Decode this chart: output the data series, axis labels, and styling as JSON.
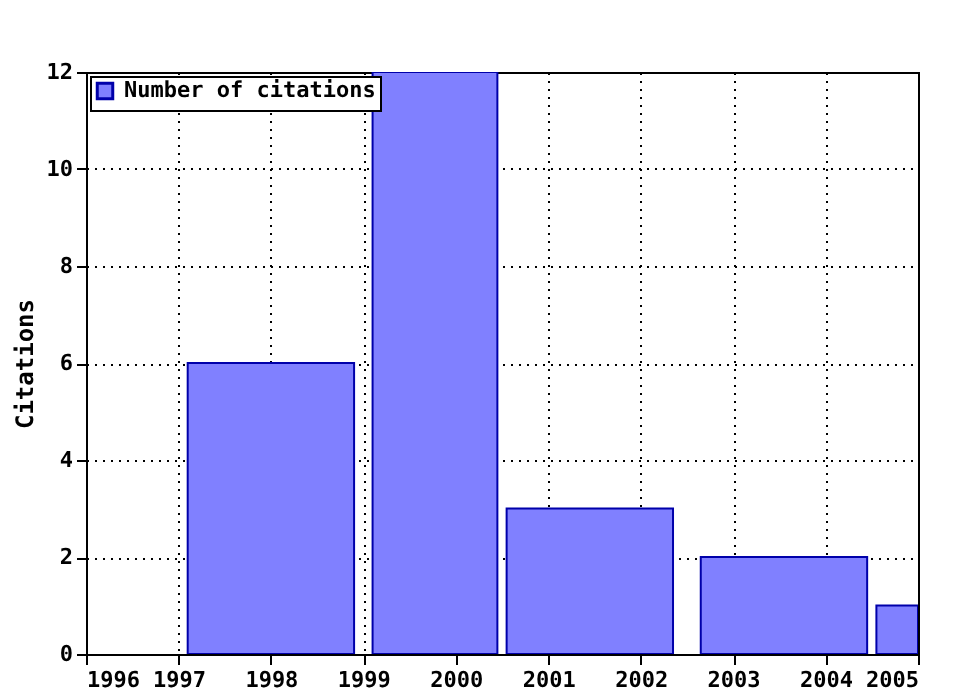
{
  "chart_data": {
    "type": "histogram",
    "ylabel": "Citations",
    "bins": [
      1997.1,
      1998.9,
      1999.1,
      2000.45,
      2000.55,
      2002.35,
      2002.65,
      2004.45,
      2004.55,
      2005
    ],
    "series": [
      {
        "name": "Number of citations",
        "color": "#8080ff",
        "values": [
          6,
          null,
          12,
          null,
          3,
          null,
          2,
          null,
          1
        ]
      }
    ],
    "xlim": [
      1996,
      2005
    ],
    "xticks": [
      1996,
      1997,
      1998,
      1999,
      2000,
      2001,
      2002,
      2003,
      2004,
      2005
    ],
    "ylim": [
      0,
      12
    ],
    "yticks": [
      0,
      2,
      4,
      6,
      8,
      10,
      12
    ],
    "grid": true,
    "legend": "top left"
  }
}
